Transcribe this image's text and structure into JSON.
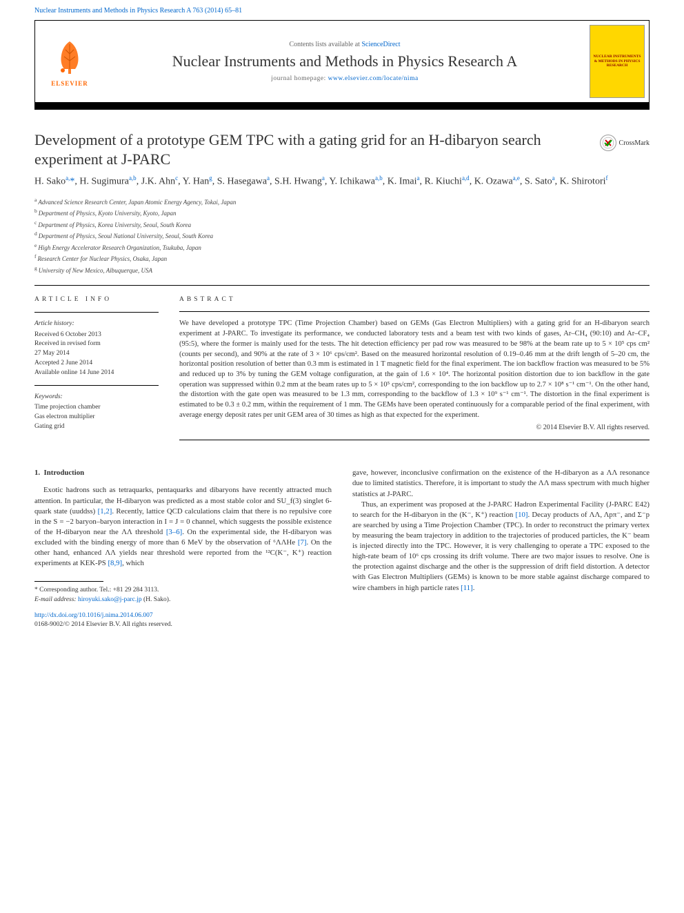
{
  "header": {
    "citation_link": "Nuclear Instruments and Methods in Physics Research A 763 (2014) 65–81",
    "contents_text": "Contents lists available at ",
    "contents_link": "ScienceDirect",
    "journal_title": "Nuclear Instruments and Methods in Physics Research A",
    "homepage_label": "journal homepage: ",
    "homepage_link": "www.elsevier.com/locate/nima",
    "elsevier": "ELSEVIER",
    "cover_text": "NUCLEAR INSTRUMENTS & METHODS IN PHYSICS RESEARCH"
  },
  "crossmark": "CrossMark",
  "title": "Development of a prototype GEM TPC with a gating grid for an H-dibaryon search experiment at J-PARC",
  "authors_html": "H. Sako<sup>a,</sup><span class='ast'>*</span>, H. Sugimura<sup>a,b</sup>, J.K. Ahn<sup>c</sup>, Y. Han<sup>g</sup>, S. Hasegawa<sup>a</sup>, S.H. Hwang<sup>a</sup>, Y. Ichikawa<sup>a,b</sup>, K. Imai<sup>a</sup>, R. Kiuchi<sup>a,d</sup>, K. Ozawa<sup>a,e</sup>, S. Sato<sup>a</sup>, K. Shirotori<sup>f</sup>",
  "affiliations": [
    "a Advanced Science Research Center, Japan Atomic Energy Agency, Tokai, Japan",
    "b Department of Physics, Kyoto University, Kyoto, Japan",
    "c Department of Physics, Korea University, Seoul, South Korea",
    "d Department of Physics, Seoul National University, Seoul, South Korea",
    "e High Energy Accelerator Research Organization, Tsukuba, Japan",
    "f Research Center for Nuclear Physics, Osaka, Japan",
    "g University of New Mexico, Albuquerque, USA"
  ],
  "info": {
    "heading": "ARTICLE INFO",
    "history_label": "Article history:",
    "history": [
      "Received 6 October 2013",
      "Received in revised form",
      "27 May 2014",
      "Accepted 2 June 2014",
      "Available online 14 June 2014"
    ],
    "keywords_label": "Keywords:",
    "keywords": [
      "Time projection chamber",
      "Gas electron multiplier",
      "Gating grid"
    ]
  },
  "abstract": {
    "heading": "ABSTRACT",
    "text": "We have developed a prototype TPC (Time Projection Chamber) based on GEMs (Gas Electron Multipliers) with a gating grid for an H-dibaryon search experiment at J-PARC. To investigate its performance, we conducted laboratory tests and a beam test with two kinds of gases, Ar–CH₄ (90:10) and Ar–CF₄ (95:5), where the former is mainly used for the tests. The hit detection efficiency per pad row was measured to be 98% at the beam rate up to 5 × 10⁵ cps cm² (counts per second), and 90% at the rate of 3 × 10⁶ cps/cm². Based on the measured horizontal resolution of 0.19–0.46 mm at the drift length of 5–20 cm, the horizontal position resolution of better than 0.3 mm is estimated in 1 T magnetic field for the final experiment. The ion backflow fraction was measured to be 5% and reduced up to 3% by tuning the GEM voltage configuration, at the gain of 1.6 × 10⁴. The horizontal position distortion due to ion backflow in the gate operation was suppressed within 0.2 mm at the beam rates up to 5 × 10⁵ cps/cm², corresponding to the ion backflow up to 2.7 × 10⁸ s⁻¹ cm⁻¹. On the other hand, the distortion with the gate open was measured to be 1.3 mm, corresponding to the backflow of 1.3 × 10⁹ s⁻¹ cm⁻¹. The distortion in the final experiment is estimated to be 0.3 ± 0.2 mm, within the requirement of 1 mm. The GEMs have been operated continuously for a comparable period of the final experiment, with average energy deposit rates per unit GEM area of 30 times as high as that expected for the experiment.",
    "copyright": "© 2014 Elsevier B.V. All rights reserved."
  },
  "body": {
    "section_number": "1.",
    "section_title": "Introduction",
    "col1": "Exotic hadrons such as tetraquarks, pentaquarks and dibaryons have recently attracted much attention. In particular, the H-dibaryon was predicted as a most stable color and SU_f(3) singlet 6-quark state (uuddss) [1,2]. Recently, lattice QCD calculations claim that there is no repulsive core in the S = −2 baryon–baryon interaction in I = J = 0 channel, which suggests the possible existence of the H-dibaryon near the ΛΛ threshold [3–6]. On the experimental side, the H-dibaryon was excluded with the binding energy of more than 6 MeV by the observation of ⁶ΛΛHe [7]. On the other hand, enhanced ΛΛ yields near threshold were reported from the ¹²C(K⁻, K⁺) reaction experiments at KEK-PS [8,9], which",
    "col2a": "gave, however, inconclusive confirmation on the existence of the H-dibaryon as a ΛΛ resonance due to limited statistics. Therefore, it is important to study the ΛΛ mass spectrum with much higher statistics at J-PARC.",
    "col2b": "Thus, an experiment was proposed at the J-PARC Hadron Experimental Facility (J-PARC E42) to search for the H-dibaryon in the (K⁻, K⁺) reaction [10]. Decay products of ΛΛ, Λpπ⁻, and Σ⁻p are searched by using a Time Projection Chamber (TPC). In order to reconstruct the primary vertex by measuring the beam trajectory in addition to the trajectories of produced particles, the K⁻ beam is injected directly into the TPC. However, it is very challenging to operate a TPC exposed to the high-rate beam of 10⁶ cps crossing its drift volume. There are two major issues to resolve. One is the protection against discharge and the other is the suppression of drift field distortion. A detector with Gas Electron Multipliers (GEMs) is known to be more stable against discharge compared to wire chambers in high particle rates [11]."
  },
  "footnote": {
    "corr": "* Corresponding author. Tel.: +81 29 284 3113.",
    "email_label": "E-mail address: ",
    "email": "hiroyuki.sako@j-parc.jp",
    "email_suffix": " (H. Sako)."
  },
  "footer": {
    "doi": "http://dx.doi.org/10.1016/j.nima.2014.06.007",
    "issn": "0168-9002/© 2014 Elsevier B.V. All rights reserved."
  },
  "style": {
    "link_color": "#0066cc",
    "elsevier_orange": "#ff6600",
    "cover_bg": "#ffd700",
    "cover_text_color": "#8b0000",
    "body_font_size": 10.8,
    "title_font_size": 22,
    "abstract_font_size": 10.5
  }
}
